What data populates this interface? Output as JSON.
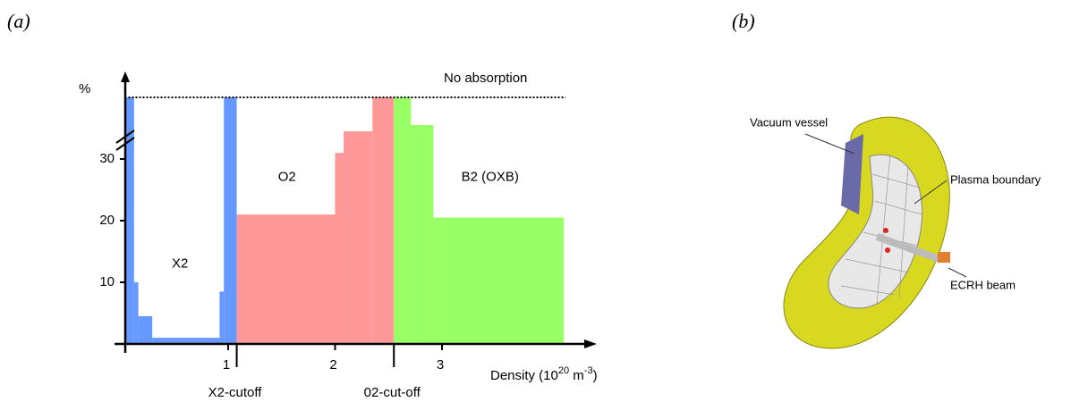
{
  "panels": [
    "(a)",
    "(b)"
  ],
  "chart_data": {
    "type": "step-area",
    "ylabel": "%",
    "xlabel": [
      "Density  (10",
      "20",
      " m",
      "-3",
      ")"
    ],
    "xlim": [
      0,
      4.3
    ],
    "ylim": [
      0,
      40
    ],
    "xticks": [
      1,
      2,
      3
    ],
    "yticks": [
      10,
      20,
      30
    ],
    "reference_line": {
      "y": 40,
      "label": "No absorption"
    },
    "series": [
      {
        "name": "X2",
        "color": "#6699ff",
        "bins": [
          0.04,
          0.12,
          0.16,
          0.29,
          0.92,
          0.96,
          1.08
        ],
        "values": [
          40,
          10,
          4.5,
          1,
          8.5,
          40
        ]
      },
      {
        "name": "O2",
        "color": "#ff9999",
        "bins": [
          1.08,
          2.0,
          2.08,
          2.35,
          2.55
        ],
        "values": [
          21,
          31,
          34.5,
          40
        ]
      },
      {
        "name": "B2 (OXB)",
        "color": "#99ff66",
        "bins": [
          2.55,
          2.71,
          2.92,
          4.14
        ],
        "values": [
          40,
          35.5,
          20.5
        ]
      }
    ],
    "cutoffs": [
      {
        "x": 1.08,
        "label": "X2-cutoff"
      },
      {
        "x": 2.55,
        "label": "02-cut-off"
      }
    ]
  },
  "diagram": {
    "labels": [
      "Vacuum vessel",
      "Plasma boundary",
      "ECRH beam"
    ]
  }
}
